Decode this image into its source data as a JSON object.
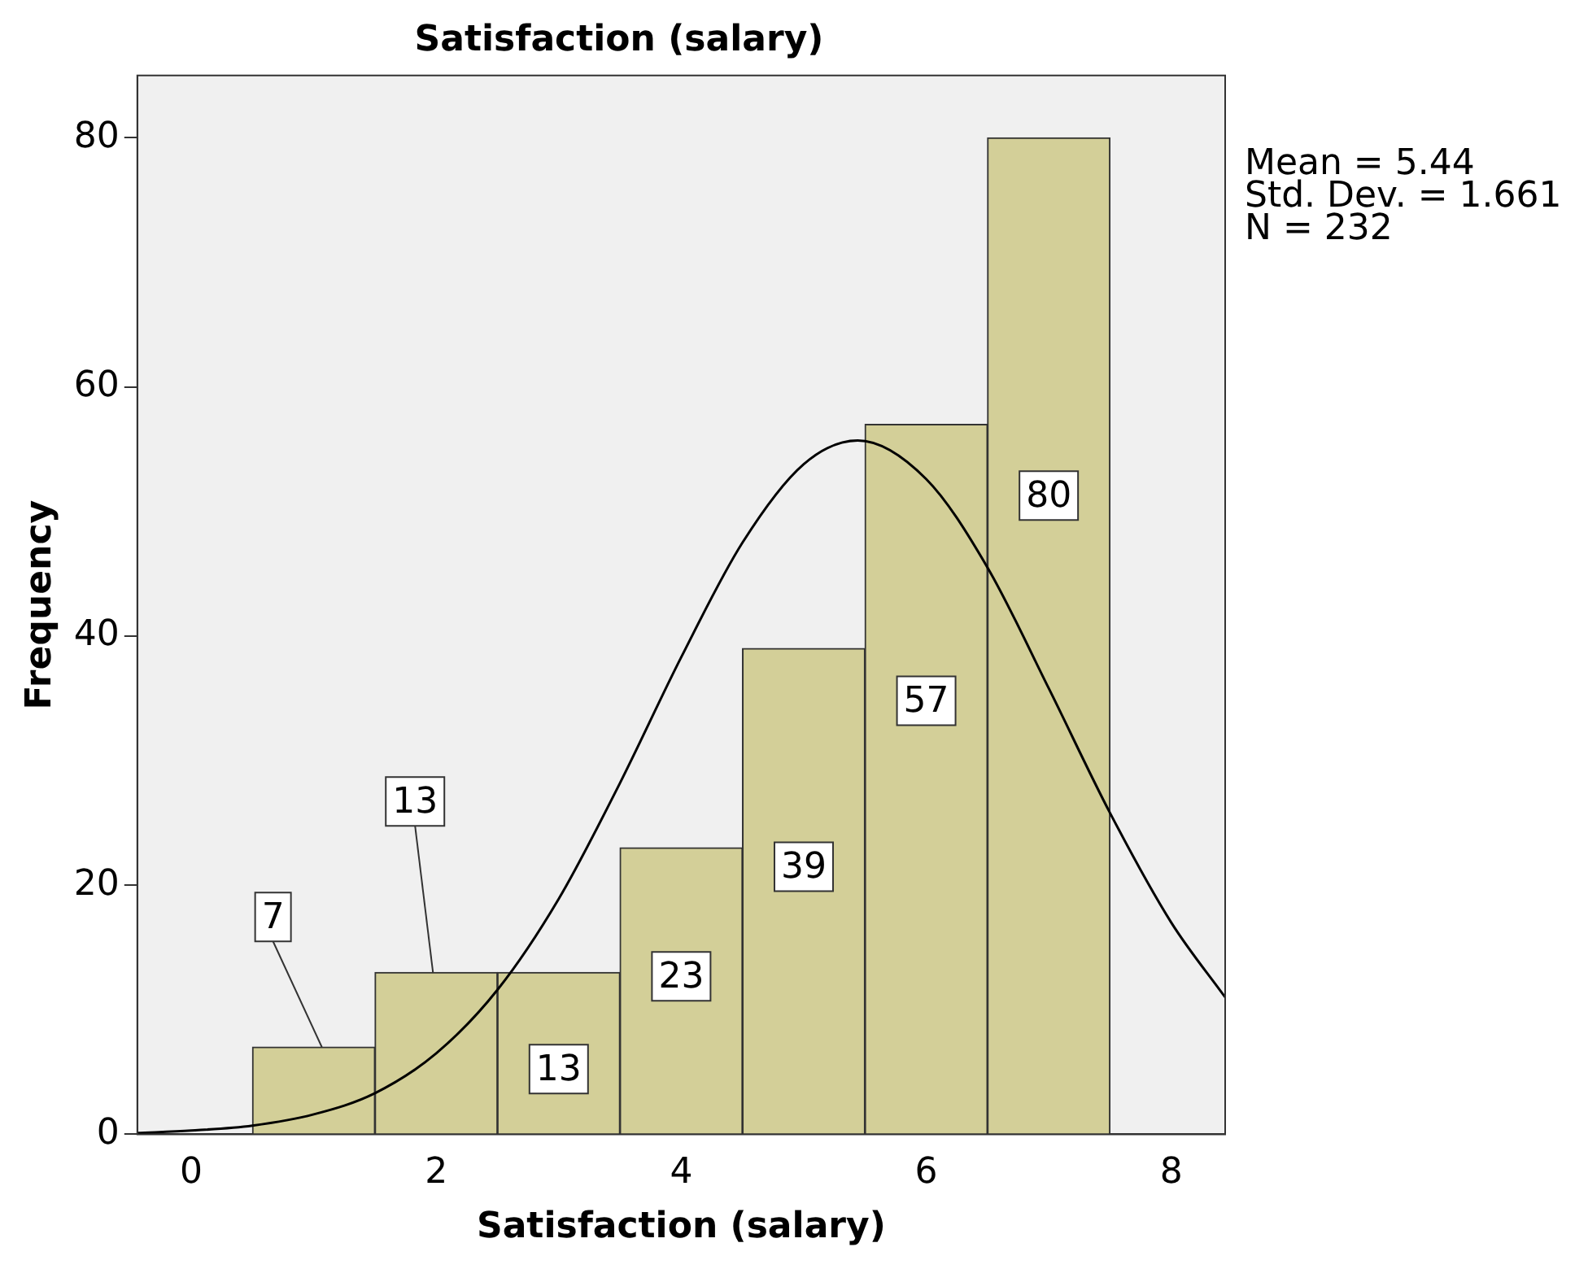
{
  "chart_data": {
    "type": "histogram",
    "title": "Satisfaction (salary)",
    "xlabel": "Satisfaction (salary)",
    "ylabel": "Frequency",
    "bins": [
      0.5,
      1.5,
      2.5,
      3.5,
      4.5,
      5.5,
      6.5,
      7.5
    ],
    "values": [
      7,
      13,
      13,
      23,
      39,
      57,
      80
    ],
    "color": "#d3cf98",
    "value_labels": [
      "7",
      "13",
      "13",
      "23",
      "39",
      "57",
      "80"
    ],
    "series": [
      {
        "type": "line",
        "color": "#000000",
        "x": [
          -0.44,
          0,
          0.5,
          1,
          1.5,
          2,
          2.5,
          3,
          3.5,
          4,
          4.5,
          5,
          5.44,
          6,
          6.5,
          7,
          7.5,
          8,
          8.44
        ],
        "values": [
          0.1,
          0.3,
          0.7,
          1.6,
          3.3,
          6.5,
          11.6,
          18.9,
          28.2,
          38.3,
          47.5,
          53.8,
          55.7,
          52.6,
          45.5,
          35.8,
          25.8,
          17,
          11
        ]
      }
    ],
    "xlim": [
      -0.44,
      8.44
    ],
    "ylim": [
      0,
      85
    ],
    "xticks": [
      0,
      2,
      4,
      6,
      8
    ],
    "yticks": [
      0,
      20,
      40,
      60,
      80
    ],
    "grid": false,
    "legend": false,
    "annotations": [
      "Mean = 5.44",
      "Std. Dev. = 1.661",
      "N = 232"
    ]
  }
}
